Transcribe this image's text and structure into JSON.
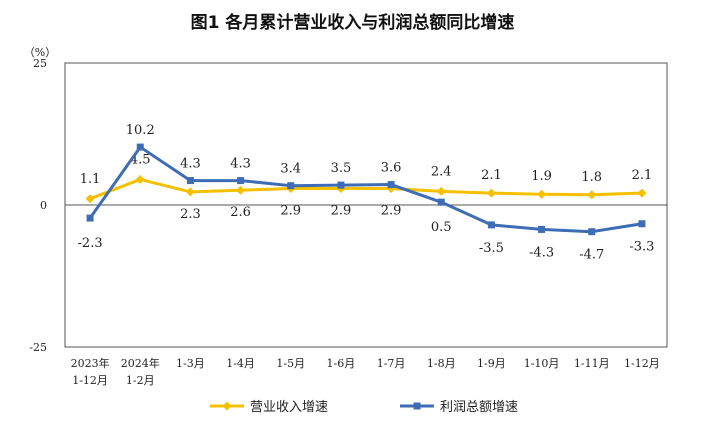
{
  "chart_data": {
    "type": "line",
    "title": "图1  各月累计营业收入与利润总额同比增速",
    "y_unit": "（%）",
    "ylim": [
      -25,
      25
    ],
    "yticks": [
      "25",
      "0",
      "-25"
    ],
    "grid": false,
    "legend_position": "bottom",
    "categories": [
      [
        "2023年",
        "1-12月"
      ],
      [
        "2024年",
        "1-2月"
      ],
      [
        "1-3月"
      ],
      [
        "1-4月"
      ],
      [
        "1-5月"
      ],
      [
        "1-6月"
      ],
      [
        "1-7月"
      ],
      [
        "1-8月"
      ],
      [
        "1-9月"
      ],
      [
        "1-10月"
      ],
      [
        "1-11月"
      ],
      [
        "1-12月"
      ]
    ],
    "series": [
      {
        "name": "营业收入增速",
        "color": "#F5C000",
        "marker": "diamond",
        "values": [
          1.1,
          4.5,
          2.3,
          2.6,
          2.9,
          2.9,
          2.9,
          2.4,
          2.1,
          1.9,
          1.8,
          2.1
        ]
      },
      {
        "name": "利润总额增速",
        "color": "#3E6DB5",
        "marker": "square",
        "values": [
          -2.3,
          10.2,
          4.3,
          4.3,
          3.4,
          3.5,
          3.6,
          0.5,
          -3.5,
          -4.3,
          -4.7,
          -3.3
        ]
      }
    ]
  }
}
